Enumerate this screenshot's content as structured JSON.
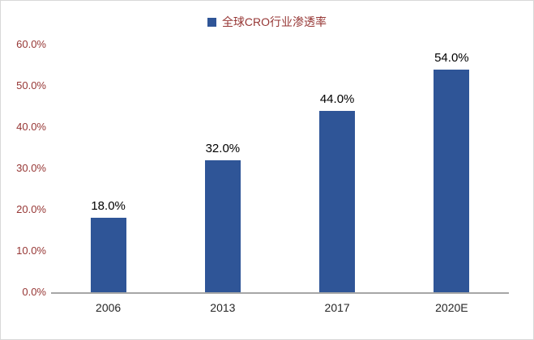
{
  "chart_data": {
    "type": "bar",
    "title": "全球CRO行业渗透率",
    "categories": [
      "2006",
      "2013",
      "2017",
      "2020E"
    ],
    "values": [
      18.0,
      32.0,
      44.0,
      54.0
    ],
    "value_labels": [
      "18.0%",
      "32.0%",
      "44.0%",
      "54.0%"
    ],
    "y_ticks": [
      "0.0%",
      "10.0%",
      "20.0%",
      "30.0%",
      "40.0%",
      "50.0%",
      "60.0%"
    ],
    "y_tick_values": [
      0,
      10,
      20,
      30,
      40,
      50,
      60
    ],
    "ylim": [
      0,
      60
    ],
    "xlabel": "",
    "ylabel": "",
    "grid": false,
    "legend_position": "top",
    "colors": {
      "bar": "#2F5597",
      "axis_tick_text": "#963634",
      "legend_text": "#963634",
      "category_text": "#262626",
      "data_label_text": "#000000",
      "axis_line": "#a6a6a6",
      "frame_border": "#d8d8d8",
      "background": "#ffffff"
    }
  }
}
